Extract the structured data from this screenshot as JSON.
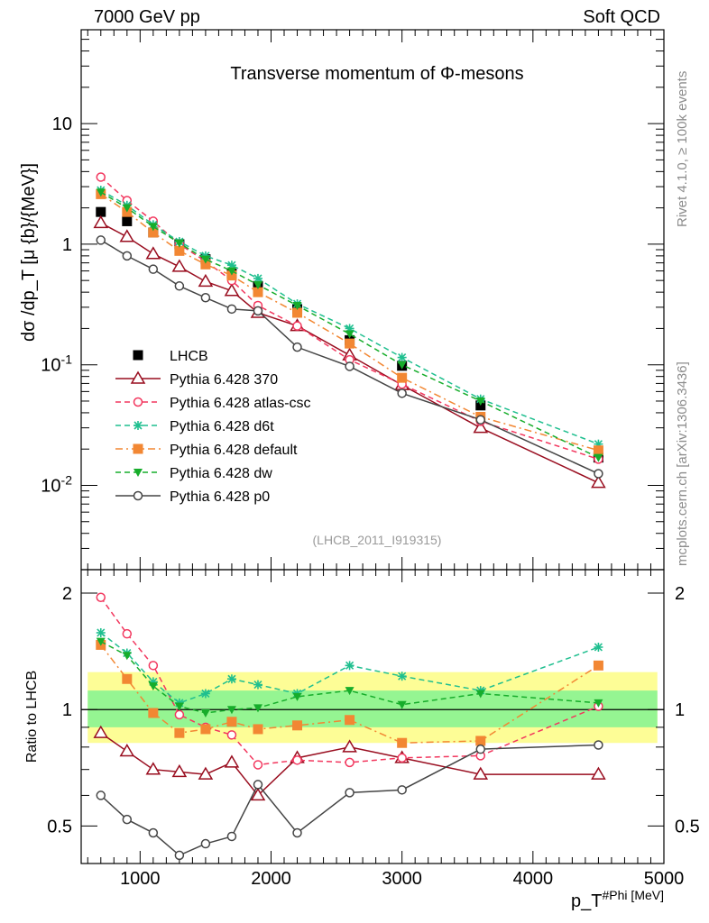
{
  "header": {
    "left": "7000 GeV pp",
    "right": "Soft QCD"
  },
  "side_labels": {
    "rivet": "Rivet 4.1.0, ≥ 100k events",
    "mcplots": "mcplots.cern.ch [arXiv:1306.3436]"
  },
  "colors": {
    "lhcb": "#000000",
    "p370": "#990d1f",
    "atlas": "#f2375e",
    "d6t": "#1fbf8f",
    "default": "#f28733",
    "dw": "#17ad2b",
    "p0": "#454545",
    "band_outer": "#fdfd96",
    "band_inner": "#95f592"
  },
  "chart_data": [
    {
      "type": "line",
      "panel": "main",
      "title": "Transverse momentum of Φ-mesons",
      "ylabel": "dσ /dp_T [μ {b}/{MeV}]",
      "yscale": "log",
      "xlim": [
        550,
        5000
      ],
      "ylim": [
        0.002,
        60
      ],
      "yticks": [
        {
          "value": 10,
          "label": "10"
        },
        {
          "value": 1,
          "label": "1"
        },
        {
          "value": 0.1,
          "label": "10^-1"
        },
        {
          "value": 0.01,
          "label": "10^-2"
        }
      ],
      "analysis_label": "(LHCB_2011_I919315)",
      "legend_position": "left-middle",
      "x": [
        700,
        900,
        1100,
        1300,
        1500,
        1700,
        1900,
        2200,
        2600,
        3000,
        3600,
        4500
      ],
      "series": [
        {
          "key": "lhcb",
          "name": "LHCB",
          "marker": "square-filled",
          "dash": "none",
          "values": [
            1.85,
            1.55,
            1.25,
            1.0,
            0.75,
            0.57,
            0.45,
            0.29,
            0.16,
            0.098,
            0.046,
            0.017
          ]
        },
        {
          "key": "p370",
          "name": "Pythia 6.428 370",
          "marker": "triangle-open",
          "dash": "solid",
          "values": [
            1.5,
            1.15,
            0.83,
            0.65,
            0.49,
            0.41,
            0.27,
            0.21,
            0.12,
            0.068,
            0.03,
            0.0105
          ]
        },
        {
          "key": "atlas",
          "name": "Pythia 6.428 atlas-csc",
          "marker": "circle-open",
          "dash": "dashed",
          "values": [
            3.6,
            2.3,
            1.55,
            1.0,
            0.72,
            0.5,
            0.31,
            0.21,
            0.11,
            0.069,
            0.034,
            0.0165
          ]
        },
        {
          "key": "d6t",
          "name": "Pythia 6.428 d6t",
          "marker": "star",
          "dash": "dashed",
          "values": [
            2.8,
            2.1,
            1.45,
            1.05,
            0.8,
            0.67,
            0.52,
            0.32,
            0.2,
            0.115,
            0.052,
            0.022
          ]
        },
        {
          "key": "default",
          "name": "Pythia 6.428 default",
          "marker": "square-filled",
          "dash": "dashdot",
          "values": [
            2.6,
            1.85,
            1.25,
            0.88,
            0.68,
            0.55,
            0.4,
            0.27,
            0.15,
            0.078,
            0.037,
            0.0195
          ]
        },
        {
          "key": "dw",
          "name": "Pythia 6.428 dw",
          "marker": "triangle-down-filled",
          "dash": "dashed",
          "values": [
            2.7,
            2.0,
            1.4,
            1.02,
            0.75,
            0.6,
            0.46,
            0.31,
            0.18,
            0.1,
            0.05,
            0.017
          ]
        },
        {
          "key": "p0",
          "name": "Pythia 6.428 p0",
          "marker": "circle-open",
          "dash": "solid",
          "values": [
            1.08,
            0.8,
            0.62,
            0.45,
            0.36,
            0.29,
            0.28,
            0.14,
            0.097,
            0.058,
            0.035,
            0.0125
          ]
        }
      ]
    },
    {
      "type": "line",
      "panel": "ratio",
      "ylabel": "Ratio to LHCB",
      "xlabel": "p_T^#Phi [MeV]",
      "yscale": "log",
      "xlim": [
        550,
        5000
      ],
      "ylim": [
        0.4,
        2.3
      ],
      "yticks": [
        {
          "value": 2,
          "label": "2"
        },
        {
          "value": 1,
          "label": "1"
        },
        {
          "value": 0.5,
          "label": "0.5"
        }
      ],
      "xticks": [
        1000,
        2000,
        3000,
        4000,
        5000
      ],
      "band_outer": [
        0.82,
        1.25
      ],
      "band_inner": [
        0.9,
        1.12
      ],
      "x": [
        700,
        900,
        1100,
        1300,
        1500,
        1700,
        1900,
        2200,
        2600,
        3000,
        3600,
        4500
      ],
      "series": [
        {
          "key": "p370",
          "values": [
            0.87,
            0.78,
            0.7,
            0.69,
            0.68,
            0.73,
            0.6,
            0.75,
            0.8,
            0.75,
            0.68,
            0.68
          ]
        },
        {
          "key": "atlas",
          "values": [
            1.95,
            1.57,
            1.3,
            0.97,
            0.9,
            0.86,
            0.72,
            0.74,
            0.73,
            0.75,
            0.76,
            1.02
          ]
        },
        {
          "key": "d6t",
          "values": [
            1.58,
            1.4,
            1.18,
            1.04,
            1.1,
            1.2,
            1.16,
            1.1,
            1.3,
            1.22,
            1.12,
            1.45
          ]
        },
        {
          "key": "default",
          "values": [
            1.47,
            1.2,
            0.98,
            0.87,
            0.89,
            0.93,
            0.89,
            0.91,
            0.94,
            0.82,
            0.83,
            1.3
          ]
        },
        {
          "key": "dw",
          "values": [
            1.5,
            1.38,
            1.15,
            1.02,
            0.98,
            1.0,
            1.01,
            1.08,
            1.12,
            1.03,
            1.1,
            1.04
          ]
        },
        {
          "key": "p0",
          "values": [
            0.6,
            0.52,
            0.48,
            0.42,
            0.45,
            0.47,
            0.64,
            0.48,
            0.61,
            0.62,
            0.79,
            0.81
          ]
        }
      ]
    }
  ]
}
